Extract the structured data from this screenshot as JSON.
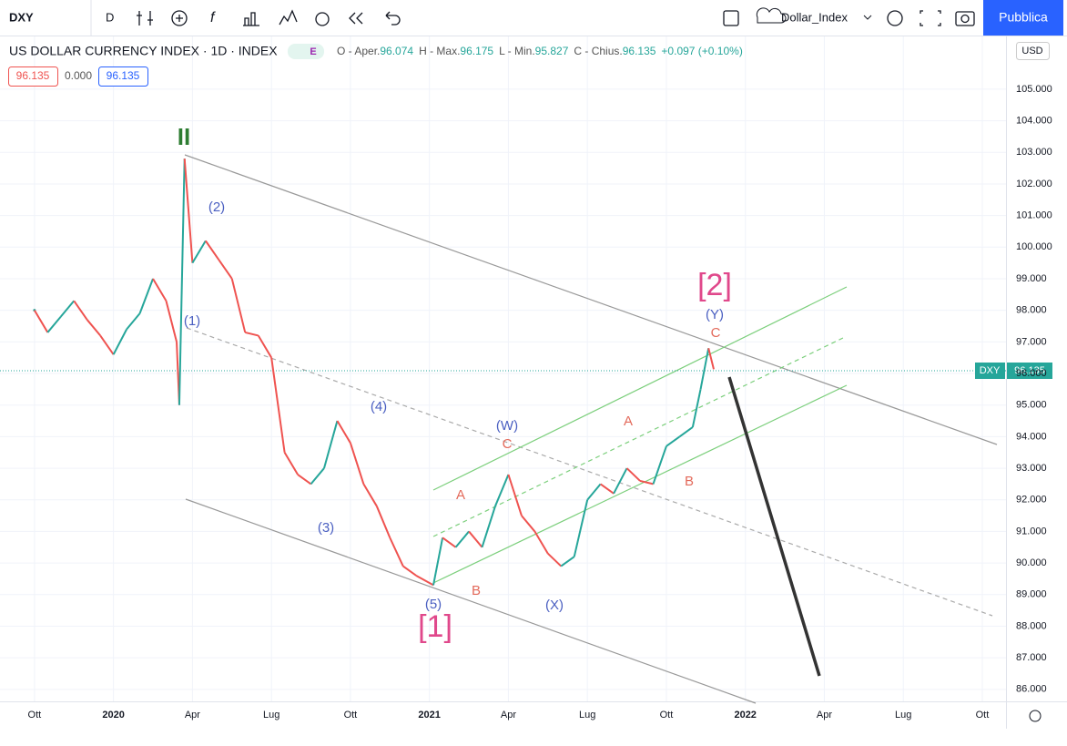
{
  "toolbar": {
    "symbol": "DXY",
    "interval": "D",
    "layout_name": "Dollar_Index",
    "publish": "Pubblica"
  },
  "header": {
    "title": "US DOLLAR CURRENCY INDEX · 1D · INDEX",
    "badge": "E",
    "o_label": "O - Aper.",
    "o": "96.074",
    "h_label": "H - Max.",
    "h": "96.175",
    "l_label": "L - Min.",
    "l": "95.827",
    "c_label": "C - Chius.",
    "c": "96.135",
    "change": "+0.097 (+0.10%)",
    "box1": "96.135",
    "box2": "0.000",
    "box3": "96.135"
  },
  "currency": "USD",
  "price_tag": {
    "symbol": "DXY",
    "value": "96.135"
  },
  "annotations": [
    "II",
    "(2)",
    "(1)",
    "(3)",
    "(4)",
    "(5)",
    "[1]",
    "A",
    "B",
    "C",
    "(W)",
    "(X)",
    "A",
    "B",
    "C",
    "(Y)",
    "[2]"
  ],
  "chart_data": {
    "type": "line",
    "x": [
      0,
      0.5,
      1,
      1.5,
      2,
      2.5,
      3,
      3.5,
      4,
      4.5,
      5,
      5.4,
      5.5,
      5.7,
      6,
      6.5,
      7,
      7.5,
      8,
      8.5,
      9,
      9.5,
      10,
      10.5,
      11,
      11.5,
      12,
      12.5,
      13,
      13.5,
      14,
      14.5,
      15.15,
      15.5,
      16,
      16.5,
      17,
      17.5,
      18,
      18.5,
      19,
      19.5,
      20,
      20.5,
      21,
      21.5,
      22,
      22.5,
      23,
      23.5,
      24,
      24.5,
      25,
      25.3,
      25.6,
      25.8
    ],
    "values": [
      98.0,
      97.3,
      97.8,
      98.3,
      97.7,
      97.2,
      96.6,
      97.4,
      97.9,
      99.0,
      98.3,
      97.0,
      95.0,
      102.8,
      99.5,
      100.2,
      99.6,
      99.0,
      97.3,
      97.2,
      96.5,
      93.5,
      92.8,
      92.5,
      93.0,
      94.5,
      93.8,
      92.5,
      91.8,
      90.8,
      89.9,
      89.6,
      89.3,
      90.8,
      90.5,
      91.0,
      90.5,
      91.8,
      92.8,
      91.5,
      91.0,
      90.3,
      89.9,
      90.2,
      92.0,
      92.5,
      92.2,
      93.0,
      92.6,
      92.5,
      93.7,
      94.0,
      94.3,
      95.5,
      96.8,
      96.135
    ],
    "xlim": [
      -1.31,
      36.9
    ],
    "xticks": [
      {
        "value": 0,
        "label": "Ott"
      },
      {
        "value": 3,
        "label": "2020"
      },
      {
        "value": 6,
        "label": "Apr"
      },
      {
        "value": 9,
        "label": "Lug"
      },
      {
        "value": 12,
        "label": "Ott"
      },
      {
        "value": 15,
        "label": "2021"
      },
      {
        "value": 18,
        "label": "Apr"
      },
      {
        "value": 21,
        "label": "Lug"
      },
      {
        "value": 24,
        "label": "Ott"
      },
      {
        "value": 27,
        "label": "2022"
      },
      {
        "value": 30,
        "label": "Apr"
      },
      {
        "value": 33,
        "label": "Lug"
      },
      {
        "value": 36,
        "label": "Ott"
      }
    ],
    "ylim": [
      85.62,
      106.67
    ],
    "yticks": [
      {
        "value": 86,
        "label": "86.000"
      },
      {
        "value": 87,
        "label": "87.000"
      },
      {
        "value": 88,
        "label": "88.000"
      },
      {
        "value": 89,
        "label": "89.000"
      },
      {
        "value": 90,
        "label": "90.000"
      },
      {
        "value": 91,
        "label": "91.000"
      },
      {
        "value": 92,
        "label": "92.000"
      },
      {
        "value": 93,
        "label": "93.000"
      },
      {
        "value": 94,
        "label": "94.000"
      },
      {
        "value": 95,
        "label": "95.000"
      },
      {
        "value": 96,
        "label": "96.000"
      },
      {
        "value": 97,
        "label": "97.000"
      },
      {
        "value": 98,
        "label": "98.000"
      },
      {
        "value": 99,
        "label": "99.000"
      },
      {
        "value": 100,
        "label": "100.000"
      },
      {
        "value": 101,
        "label": "101.000"
      },
      {
        "value": 102,
        "label": "102.000"
      },
      {
        "value": 103,
        "label": "103.000"
      },
      {
        "value": 104,
        "label": "104.000"
      },
      {
        "value": 105,
        "label": "105.000"
      }
    ],
    "grid": true,
    "up_color": "#26a69a",
    "down_color": "#ef5350"
  }
}
